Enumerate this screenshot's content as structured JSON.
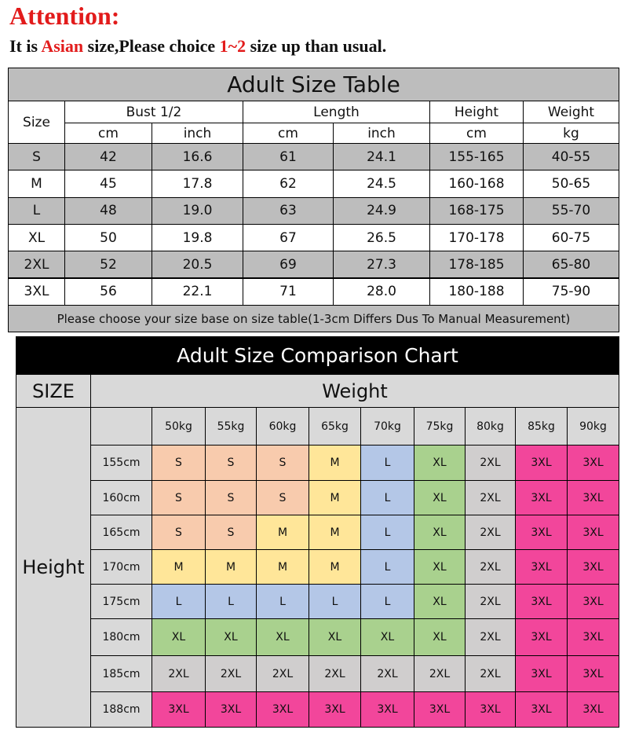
{
  "attention": {
    "title": "Attention:",
    "line": [
      "It is ",
      "Asian",
      " size,Please choice ",
      "1~2",
      " size up than usual."
    ]
  },
  "size_table": {
    "title": "Adult Size Table",
    "size_header": "Size",
    "groups": [
      "Bust 1/2",
      "Length",
      "Height",
      "Weight"
    ],
    "units": [
      "cm",
      "inch",
      "cm",
      "inch",
      "cm",
      "kg"
    ],
    "rows": [
      [
        "S",
        "42",
        "16.6",
        "61",
        "24.1",
        "155-165",
        "40-55"
      ],
      [
        "M",
        "45",
        "17.8",
        "62",
        "24.5",
        "160-168",
        "50-65"
      ],
      [
        "L",
        "48",
        "19.0",
        "63",
        "24.9",
        "168-175",
        "55-70"
      ],
      [
        "XL",
        "50",
        "19.8",
        "67",
        "26.5",
        "170-178",
        "60-75"
      ],
      [
        "2XL",
        "52",
        "20.5",
        "69",
        "27.3",
        "178-185",
        "65-80"
      ],
      [
        "3XL",
        "56",
        "22.1",
        "71",
        "28.0",
        "180-188",
        "75-90"
      ]
    ],
    "note": "Please choose your size base on size table(1-3cm Differs Dus To Manual Measurement)"
  },
  "comparison_chart": {
    "title": "Adult Size Comparison Chart",
    "size_label": "SIZE",
    "weight_label": "Weight",
    "height_label": "Height",
    "weights": [
      "50kg",
      "55kg",
      "60kg",
      "65kg",
      "70kg",
      "75kg",
      "80kg",
      "85kg",
      "90kg"
    ],
    "rows": [
      {
        "height": "155cm",
        "sizes": [
          "S",
          "S",
          "S",
          "M",
          "L",
          "XL",
          "2XL",
          "3XL",
          "3XL"
        ]
      },
      {
        "height": "160cm",
        "sizes": [
          "S",
          "S",
          "S",
          "M",
          "L",
          "XL",
          "2XL",
          "3XL",
          "3XL"
        ]
      },
      {
        "height": "165cm",
        "sizes": [
          "S",
          "S",
          "M",
          "M",
          "L",
          "XL",
          "2XL",
          "3XL",
          "3XL"
        ]
      },
      {
        "height": "170cm",
        "sizes": [
          "M",
          "M",
          "M",
          "M",
          "L",
          "XL",
          "2XL",
          "3XL",
          "3XL"
        ]
      },
      {
        "height": "175cm",
        "sizes": [
          "L",
          "L",
          "L",
          "L",
          "L",
          "XL",
          "2XL",
          "3XL",
          "3XL"
        ]
      },
      {
        "height": "180cm",
        "sizes": [
          "XL",
          "XL",
          "XL",
          "XL",
          "XL",
          "XL",
          "2XL",
          "3XL",
          "3XL"
        ]
      },
      {
        "height": "185cm",
        "sizes": [
          "2XL",
          "2XL",
          "2XL",
          "2XL",
          "2XL",
          "2XL",
          "2XL",
          "3XL",
          "3XL"
        ]
      },
      {
        "height": "188cm",
        "sizes": [
          "3XL",
          "3XL",
          "3XL",
          "3XL",
          "3XL",
          "3XL",
          "3XL",
          "3XL",
          "3XL"
        ]
      }
    ],
    "size_colors": {
      "S": "#f8cbad",
      "M": "#ffe699",
      "L": "#b4c7e7",
      "XL": "#a9d18e",
      "2XL": "#d0cece",
      "3XL": "#f2469b"
    }
  }
}
